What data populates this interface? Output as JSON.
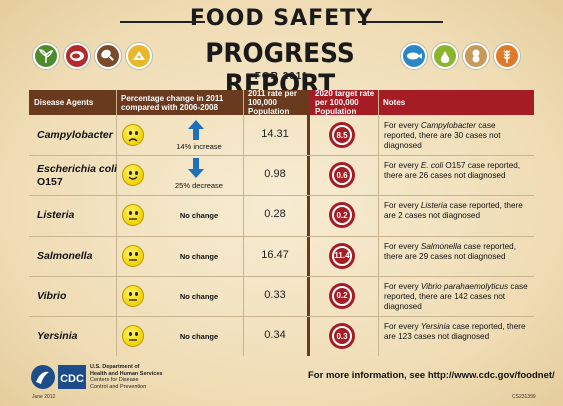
{
  "header": {
    "title_top": "FOOD SAFETY",
    "title_main": "PROGRESS REPORT",
    "subtitle": "FOR 2011"
  },
  "icons": [
    "sprout-icon",
    "meat-icon",
    "poultry-leg-icon",
    "cheese-icon",
    "fish-icon",
    "pear-icon",
    "peanut-icon",
    "wheat-icon"
  ],
  "table": {
    "columns": {
      "agent": "Disease Agents",
      "change": "Percentage change in 2011 compared with 2006-2008",
      "rate": "2011 rate per 100,000 Population",
      "target": "2020 target rate per 100,000 Population",
      "notes": "Notes"
    },
    "rows": [
      {
        "agent": "Campylobacter",
        "face": "frown",
        "change": "14% increase",
        "arrow": "up",
        "rate": "14.31",
        "target": "8.5",
        "note_pre": "For every ",
        "note_italic": "Campylobacter",
        "note_post": " case reported, there are 30 cases not diagnosed"
      },
      {
        "agent": "Escherichia coli O157",
        "agent_italic": "Escherichia coli",
        "agent_plain": "O157",
        "face": "smile",
        "change": "25% decrease",
        "arrow": "down",
        "rate": "0.98",
        "target": "0.6",
        "note_pre": "For every ",
        "note_italic": "E. coli",
        "note_post": " O157 case reported, there are 26 cases not diagnosed"
      },
      {
        "agent": "Listeria",
        "face": "neutral",
        "change": "No change",
        "arrow": "none",
        "rate": "0.28",
        "target": "0.2",
        "note_pre": "For every ",
        "note_italic": "Listeria",
        "note_post": " case reported, there are 2 cases not diagnosed"
      },
      {
        "agent": "Salmonella",
        "face": "neutral",
        "change": "No change",
        "arrow": "none",
        "rate": "16.47",
        "target": "11.4",
        "note_pre": "For every ",
        "note_italic": "Salmonella",
        "note_post": " case reported, there are 29 cases not diagnosed"
      },
      {
        "agent": "Vibrio",
        "face": "neutral",
        "change": "No change",
        "arrow": "none",
        "rate": "0.33",
        "target": "0.2",
        "note_pre": "For every ",
        "note_italic": "Vibrio parahaemolyticus",
        "note_post": " case reported, there are 142 cases not diagnosed"
      },
      {
        "agent": "Yersinia",
        "face": "neutral",
        "change": "No change",
        "arrow": "none",
        "rate": "0.34",
        "target": "0.3",
        "note_pre": "For every ",
        "note_italic": "Yersinia",
        "note_post": " case reported, there are 123 cases not diagnosed"
      }
    ]
  },
  "footer": {
    "logo_text": "CDC",
    "dept_line1": "U.S. Department of",
    "dept_line2": "Health and Human Services",
    "dept_line3": "Centers for Disease",
    "dept_line4": "Control and Prevention",
    "more_info": "For more information, see http://www.cdc.gov/foodnet/",
    "date": "June 2012",
    "code": "CS231399"
  },
  "colors": {
    "brown": "#6a3a1e",
    "red": "#a51c24",
    "arrow_blue": "#1f6fbf"
  }
}
